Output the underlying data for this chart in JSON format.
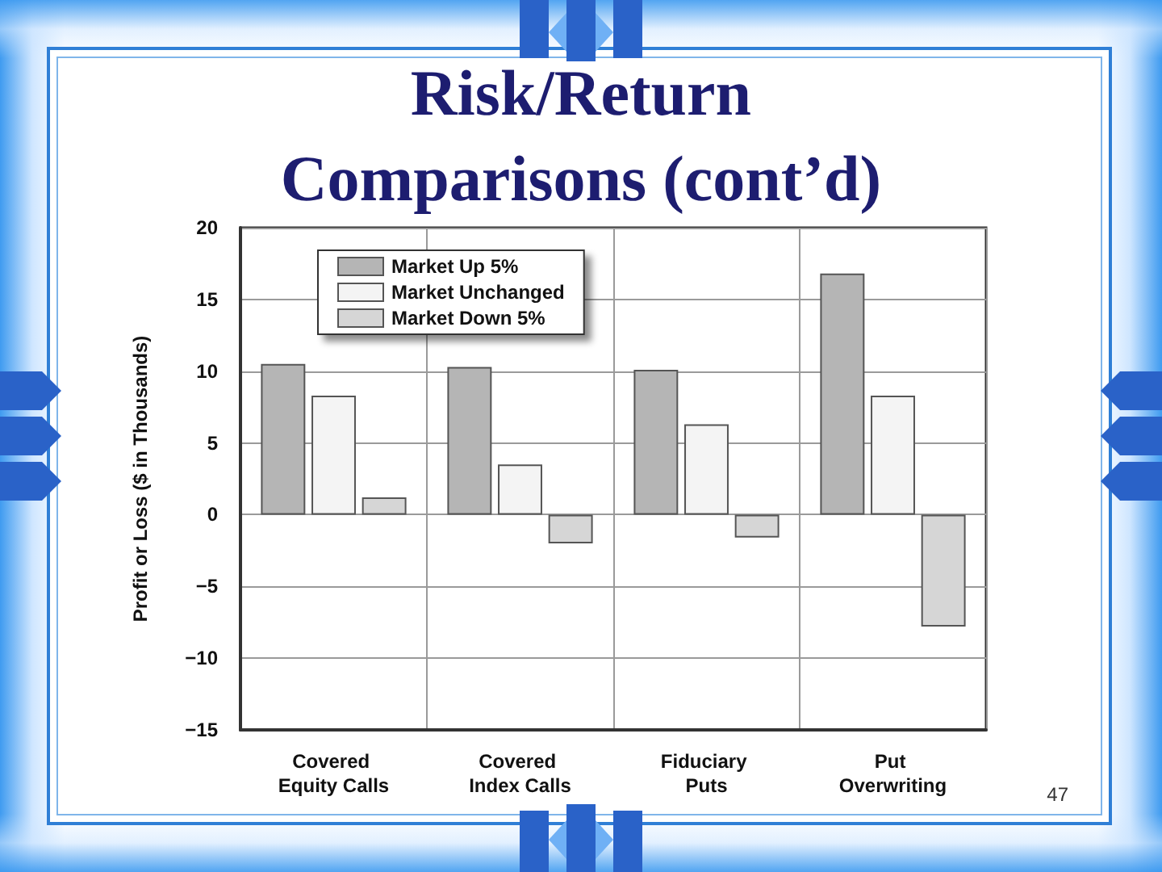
{
  "chart_data": {
    "type": "bar",
    "title": "Risk/Return Comparisons (cont’d)",
    "ylabel": "Profit or Loss ($ in Thousands)",
    "categories": [
      "Covered Equity Calls",
      "Covered Index Calls",
      "Fiduciary Puts",
      "Put Overwriting"
    ],
    "series": [
      {
        "name": "Market Up 5%",
        "color": "#b5b5b5",
        "values": [
          10.5,
          10.3,
          10.1,
          16.8
        ]
      },
      {
        "name": "Market Unchanged",
        "color": "#f4f4f4",
        "values": [
          8.3,
          3.5,
          6.3,
          8.3
        ]
      },
      {
        "name": "Market Down 5%",
        "color": "#d6d6d6",
        "values": [
          1.2,
          -2,
          -1.6,
          -7.8
        ]
      }
    ],
    "ylim": [
      -15,
      20
    ],
    "yticks": [
      {
        "value": -15,
        "label": "−15"
      },
      {
        "value": -10,
        "label": "−10"
      },
      {
        "value": -5,
        "label": "−5"
      },
      0,
      5,
      10,
      15,
      20
    ],
    "grid": true,
    "legend": "top left",
    "annotations": [
      "47"
    ]
  }
}
